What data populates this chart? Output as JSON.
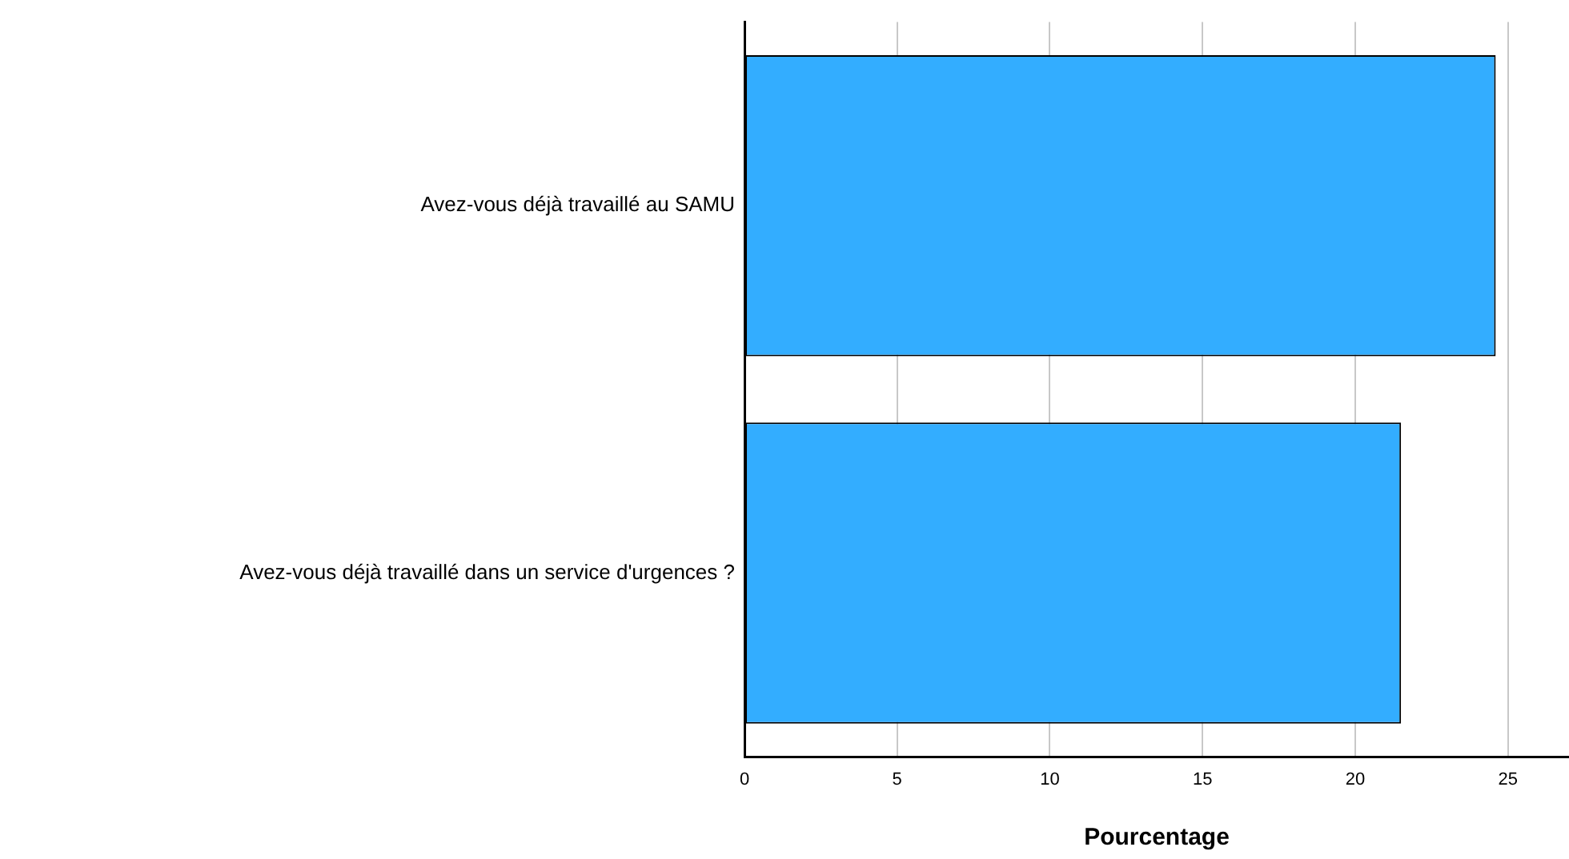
{
  "chart_data": {
    "type": "bar",
    "orientation": "horizontal",
    "xlabel": "Pourcentage",
    "categories": [
      "Avez-vous déjà travaillé au SAMU",
      "Avez-vous déjà travaillé dans un service d'urgences ?"
    ],
    "values": [
      24.6,
      21.5
    ],
    "color": "#33adff",
    "xlim": [
      0,
      27
    ],
    "xticks": [
      0,
      5,
      10,
      15,
      20,
      25
    ],
    "grid": "x",
    "legend": false
  }
}
